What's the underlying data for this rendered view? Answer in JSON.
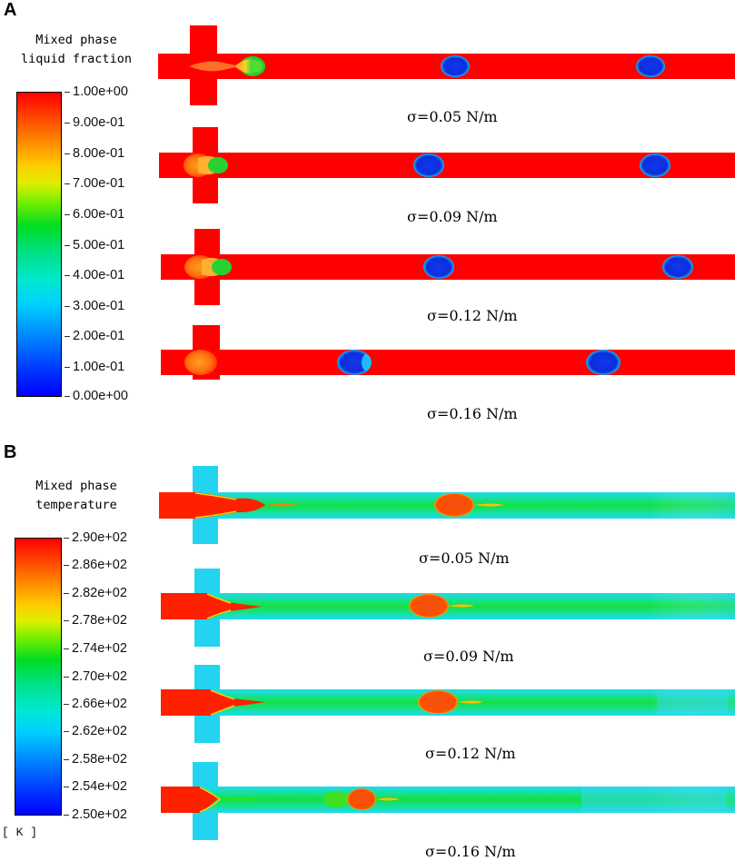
{
  "panels": {
    "a": {
      "label": "A",
      "colorbar_title_line1": "Mixed phase",
      "colorbar_title_line2": "liquid fraction",
      "ticks": [
        "1.00e+00",
        "9.00e-01",
        "8.00e-01",
        "7.00e-01",
        "6.00e-01",
        "5.00e-01",
        "4.00e-01",
        "3.00e-01",
        "2.00e-01",
        "1.00e-01",
        "0.00e+00"
      ],
      "captions": [
        "σ=0.05 N/m",
        "σ=0.09 N/m",
        "σ=0.12 N/m",
        "σ=0.16 N/m"
      ]
    },
    "b": {
      "label": "B",
      "colorbar_title_line1": "Mixed phase",
      "colorbar_title_line2": "temperature",
      "ticks": [
        "2.90e+02",
        "2.86e+02",
        "2.82e+02",
        "2.78e+02",
        "2.74e+02",
        "2.70e+02",
        "2.66e+02",
        "2.62e+02",
        "2.58e+02",
        "2.54e+02",
        "2.50e+02"
      ],
      "unit": "[ K ]",
      "captions": [
        "σ=0.05 N/m",
        "σ=0.09 N/m",
        "σ=0.12 N/m",
        "σ=0.16 N/m"
      ]
    }
  },
  "colors": {
    "liquid": "#ff0000",
    "gas": "#0a2fd8",
    "cold": "#22d4f0",
    "mid": "#10dd40",
    "warm": "#ee5510"
  }
}
